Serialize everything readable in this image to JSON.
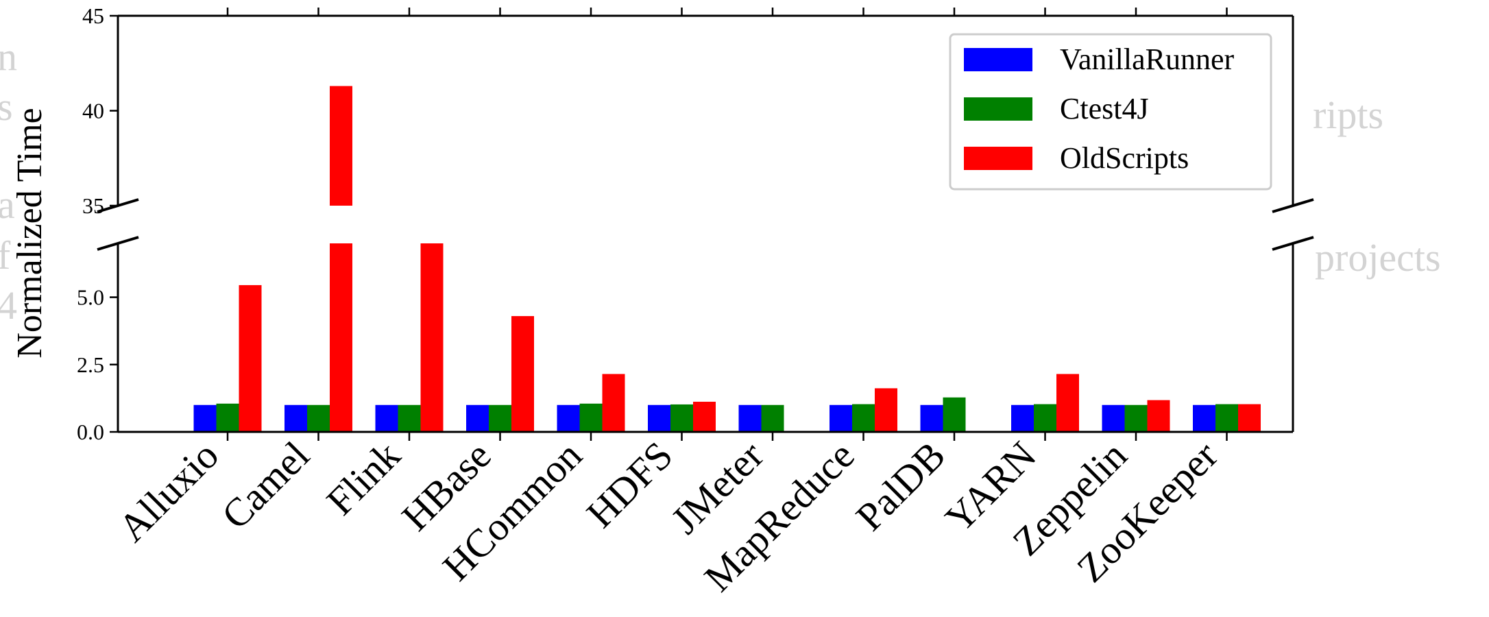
{
  "chart_data": {
    "type": "bar",
    "title": "",
    "xlabel": "",
    "ylabel": "Normalized Time",
    "broken_axis": true,
    "upper_ylim": [
      35,
      45
    ],
    "lower_ylim": [
      0,
      7
    ],
    "upper_yticks": [
      "35",
      "40",
      "45"
    ],
    "lower_yticks": [
      "0.0",
      "2.5",
      "5.0"
    ],
    "legend_position": "top-right",
    "categories": [
      "Alluxio",
      "Camel",
      "Flink",
      "HBase",
      "HCommon",
      "HDFS",
      "JMeter",
      "MapReduce",
      "PalDB",
      "YARN",
      "Zeppelin",
      "ZooKeeper"
    ],
    "series": [
      {
        "name": "VanillaRunner",
        "color": "#0000ff",
        "values": [
          1,
          1,
          1,
          1,
          1,
          1,
          1,
          1,
          1,
          1,
          1,
          1
        ]
      },
      {
        "name": "Ctest4J",
        "color": "#008000",
        "values": [
          1.05,
          1.0,
          1.0,
          1.0,
          1.05,
          1.02,
          1.0,
          1.03,
          1.28,
          1.03,
          1.0,
          1.03
        ]
      },
      {
        "name": "OldScripts",
        "color": "#ff0000",
        "values": [
          5.45,
          41.3,
          7.5,
          4.3,
          2.15,
          1.12,
          null,
          1.62,
          null,
          2.15,
          1.18,
          1.03
        ]
      }
    ]
  },
  "background_text": {
    "right_top": "ripts",
    "right_bottom": "projects",
    "left_glyphs": [
      "n",
      "s",
      "a",
      "f",
      "4"
    ]
  }
}
